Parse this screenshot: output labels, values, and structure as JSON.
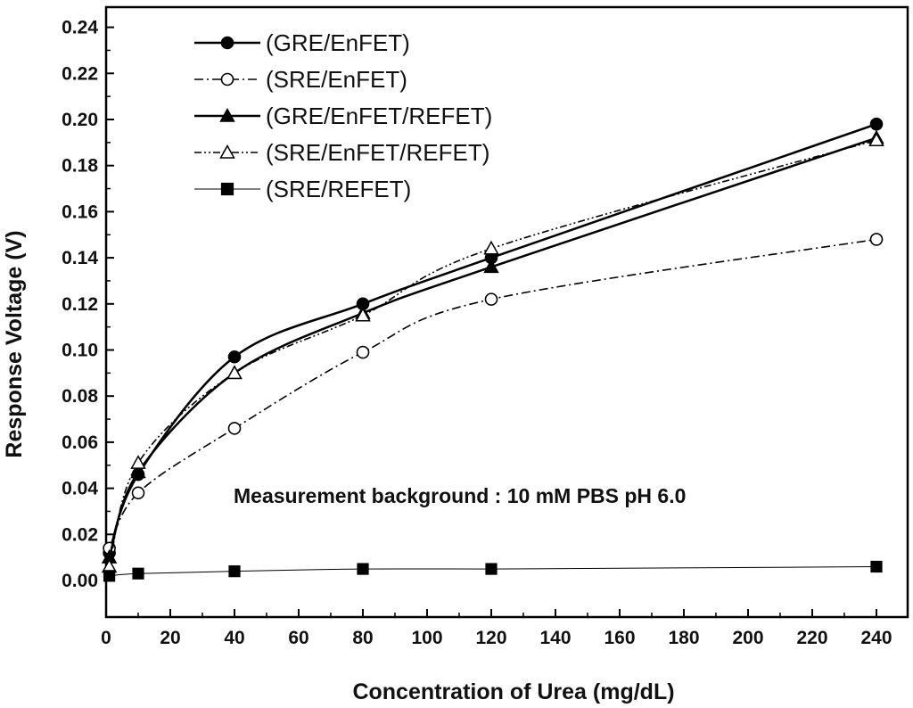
{
  "chart_data": {
    "type": "line",
    "title": "",
    "xlabel": "Concentration of Urea (mg/dL)",
    "ylabel": "Response Voltage (V)",
    "xlim": [
      0,
      250
    ],
    "ylim": [
      -0.015,
      0.245
    ],
    "x_ticks": [
      0,
      20,
      40,
      60,
      80,
      100,
      120,
      140,
      160,
      180,
      200,
      220,
      240
    ],
    "y_ticks": [
      0.0,
      0.02,
      0.04,
      0.06,
      0.08,
      0.1,
      0.12,
      0.14,
      0.16,
      0.18,
      0.2,
      0.22,
      0.24
    ],
    "x_tick_labels": [
      "0",
      "20",
      "40",
      "60",
      "80",
      "100",
      "120",
      "140",
      "160",
      "180",
      "200",
      "220",
      "240"
    ],
    "y_tick_labels": [
      "0.00",
      "0.02",
      "0.04",
      "0.06",
      "0.08",
      "0.10",
      "0.12",
      "0.14",
      "0.16",
      "0.18",
      "0.20",
      "0.22",
      "0.24"
    ],
    "grid": false,
    "legend_position": "top-left",
    "annotation": "Measurement background : 10 mM PBS pH 6.0",
    "x": [
      1,
      10,
      40,
      80,
      120,
      240
    ],
    "series": [
      {
        "name": "(GRE/EnFET)",
        "marker": "filled-circle",
        "line_style": "solid",
        "line_width": 2.5,
        "color": "#000000",
        "values": [
          0.012,
          0.046,
          0.097,
          0.12,
          0.14,
          0.198
        ]
      },
      {
        "name": "(SRE/EnFET)",
        "marker": "open-circle",
        "line_style": "dash-dot",
        "line_width": 1.6,
        "color": "#000000",
        "values": [
          0.014,
          0.038,
          0.066,
          0.099,
          0.122,
          0.148
        ]
      },
      {
        "name": "(GRE/EnFET/REFET)",
        "marker": "filled-triangle",
        "line_style": "solid",
        "line_width": 2.5,
        "color": "#000000",
        "values": [
          0.01,
          0.047,
          0.09,
          0.116,
          0.136,
          0.192
        ]
      },
      {
        "name": "(SRE/EnFET/REFET)",
        "marker": "open-triangle",
        "line_style": "dash-dot-dot",
        "line_width": 1.6,
        "color": "#000000",
        "values": [
          0.006,
          0.051,
          0.09,
          0.115,
          0.144,
          0.191
        ]
      },
      {
        "name": "(SRE/REFET)",
        "marker": "filled-square",
        "line_style": "solid-thin",
        "line_width": 1.0,
        "color": "#000000",
        "values": [
          0.002,
          0.003,
          0.004,
          0.005,
          0.005,
          0.006
        ]
      }
    ]
  }
}
